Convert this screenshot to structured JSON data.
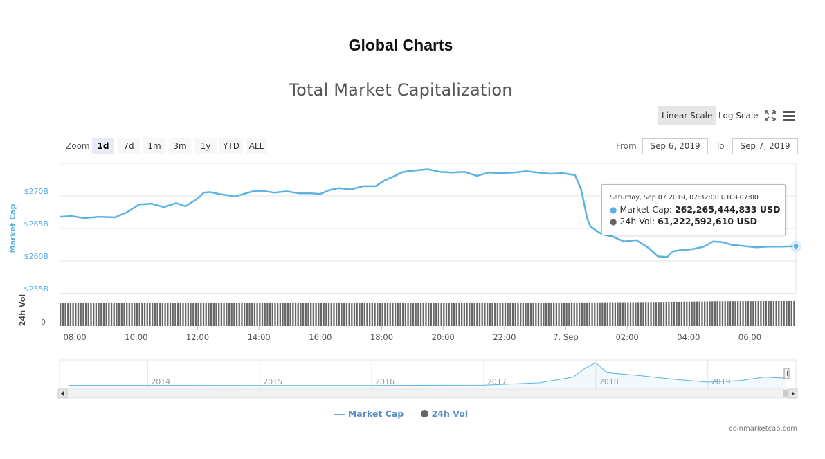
{
  "page": {
    "title": "Global Charts"
  },
  "chart": {
    "title": "Total Market Capitalization"
  },
  "toolbar": {
    "scale_options": [
      "Linear Scale",
      "Log Scale"
    ],
    "active_scale": "Linear Scale",
    "icons": [
      "fullscreen-icon",
      "menu-icon"
    ]
  },
  "zoom": {
    "label": "Zoom",
    "options": [
      "1d",
      "7d",
      "1m",
      "3m",
      "1y",
      "YTD",
      "ALL"
    ],
    "active": "1d"
  },
  "range": {
    "from_label": "From",
    "from_value": "Sep 6, 2019",
    "to_label": "To",
    "to_value": "Sep 7, 2019"
  },
  "tooltip": {
    "header": "Saturday, Sep 07 2019, 07:32:00 UTC+07:00",
    "market_cap_label": "Market Cap:",
    "market_cap_value": "262,265,444,833 USD",
    "vol_label": "24h Vol:",
    "vol_value": "61,222,592,610 USD"
  },
  "legend": {
    "market_cap": "Market Cap",
    "vol": "24h Vol"
  },
  "credits": "coinmarketcap.com",
  "colors": {
    "market_cap": "#5BB2E3",
    "volume": "#666666",
    "axis_label": "#5BB2E3"
  },
  "chart_data": {
    "type": "line",
    "ylabel": "Market Cap",
    "y2label": "24h Vol",
    "yticks": [
      "$255B",
      "$260B",
      "$265B",
      "$270B"
    ],
    "ylim": [
      255,
      275
    ],
    "vol_tick": "0",
    "xticks": [
      "08:00",
      "10:00",
      "12:00",
      "14:00",
      "16:00",
      "18:00",
      "20:00",
      "22:00",
      "7. Sep",
      "02:00",
      "04:00",
      "06:00"
    ],
    "xlim_hours": [
      7.5,
      31.5
    ],
    "xtick_hours": [
      8,
      10,
      12,
      14,
      16,
      18,
      20,
      22,
      24,
      26,
      28,
      30
    ],
    "series": [
      {
        "name": "Market Cap",
        "unit": "B USD",
        "x_hours": [
          7.5,
          7.9,
          8.3,
          8.8,
          9.3,
          9.7,
          10.1,
          10.5,
          10.9,
          11.3,
          11.6,
          12.0,
          12.2,
          12.4,
          12.7,
          13.0,
          13.2,
          13.5,
          13.8,
          14.1,
          14.5,
          14.9,
          15.3,
          15.7,
          16.0,
          16.3,
          16.6,
          17.0,
          17.4,
          17.8,
          18.1,
          18.3,
          18.7,
          19.1,
          19.5,
          19.9,
          20.3,
          20.7,
          21.1,
          21.5,
          21.9,
          22.3,
          22.7,
          23.1,
          23.5,
          23.9,
          24.3,
          24.5,
          24.7,
          24.8,
          24.9,
          25.0,
          25.2,
          25.5,
          25.9,
          26.3,
          26.7,
          27.0,
          27.3,
          27.5,
          27.8,
          28.1,
          28.5,
          28.8,
          29.1,
          29.4,
          29.8,
          30.2,
          30.6,
          31.0,
          31.5
        ],
        "y": [
          266.8,
          266.9,
          266.6,
          266.8,
          266.7,
          267.5,
          268.7,
          268.8,
          268.3,
          268.9,
          268.4,
          269.6,
          270.5,
          270.6,
          270.3,
          270.1,
          269.9,
          270.3,
          270.7,
          270.8,
          270.5,
          270.7,
          270.4,
          270.4,
          270.3,
          270.9,
          271.2,
          271.0,
          271.5,
          271.5,
          272.4,
          272.8,
          273.7,
          273.9,
          274.1,
          273.7,
          273.6,
          273.7,
          273.1,
          273.6,
          273.5,
          273.6,
          273.8,
          273.6,
          273.4,
          273.5,
          273.2,
          271.0,
          266.5,
          265.3,
          265.0,
          264.6,
          264.1,
          263.8,
          263.0,
          263.2,
          262.0,
          260.7,
          260.6,
          261.5,
          261.7,
          261.8,
          262.2,
          263.0,
          262.9,
          262.5,
          262.3,
          262.1,
          262.2,
          262.2,
          262.27
        ]
      },
      {
        "name": "24h Vol",
        "unit": "B USD",
        "x_hours": [
          7.5,
          12.0,
          16.0,
          20.0,
          24.0,
          27.0,
          29.0,
          31.5
        ],
        "y": [
          57.3,
          57.4,
          57.3,
          57.3,
          57.5,
          58.8,
          60.5,
          61.2
        ]
      }
    ],
    "navigator": {
      "labels": [
        "2014",
        "2015",
        "2016",
        "2017",
        "2018",
        "2019"
      ],
      "x_years": [
        2013.3,
        2014.0,
        2015.0,
        2016.0,
        2017.0,
        2017.5,
        2017.8,
        2017.9,
        2018.0,
        2018.1,
        2018.4,
        2018.7,
        2019.0,
        2019.3,
        2019.5,
        2019.7
      ],
      "y_trillions": [
        0.01,
        0.01,
        0.005,
        0.007,
        0.02,
        0.1,
        0.3,
        0.6,
        0.8,
        0.45,
        0.35,
        0.22,
        0.12,
        0.18,
        0.3,
        0.26
      ]
    }
  }
}
